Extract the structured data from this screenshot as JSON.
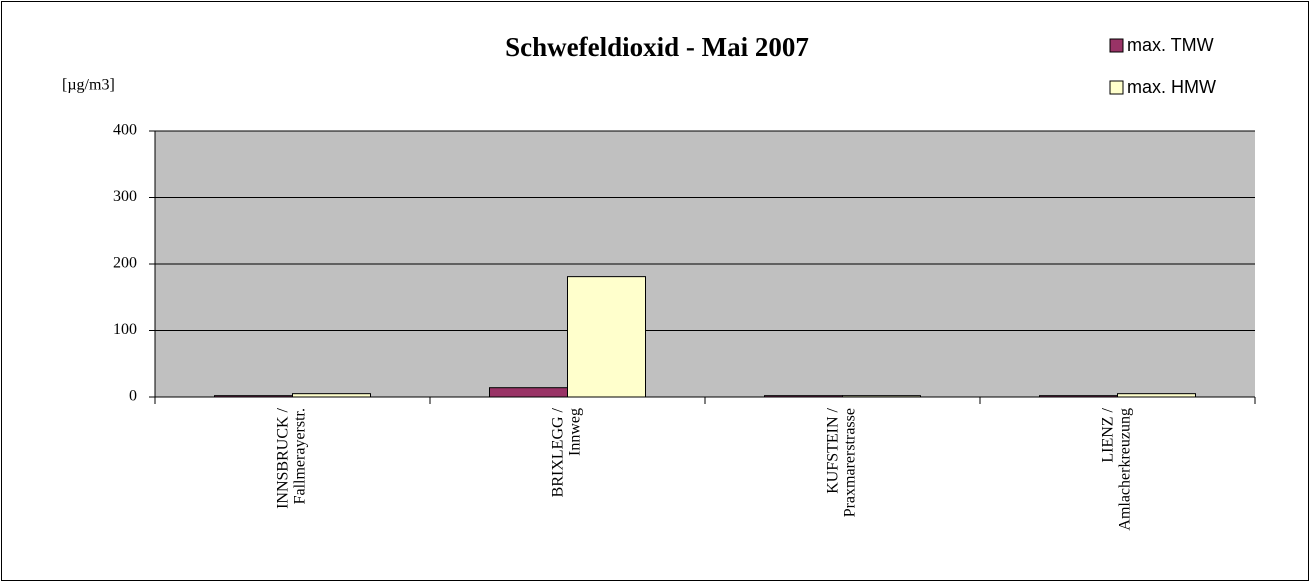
{
  "chart_data": {
    "type": "bar",
    "title": "Schwefeldioxid - Mai 2007",
    "y_label": "[µg/m3]",
    "categories": [
      "INNSBRUCK /\nFallmerayerstr.",
      "BRIXLEGG /\nInnweg",
      "KUFSTEIN /\nPraxmarerstrasse",
      "LIENZ /\nAmlacherkreuzung"
    ],
    "series": [
      {
        "name": "max. TMW",
        "color": "#993366",
        "values": [
          2,
          14,
          2,
          2
        ]
      },
      {
        "name": "max. HMW",
        "color": "#ffffcc",
        "values": [
          5,
          181,
          2,
          5
        ]
      }
    ],
    "ylim": [
      0,
      400
    ],
    "yticks": [
      0,
      100,
      200,
      300,
      400
    ],
    "grid": true,
    "legend": "top-right"
  }
}
